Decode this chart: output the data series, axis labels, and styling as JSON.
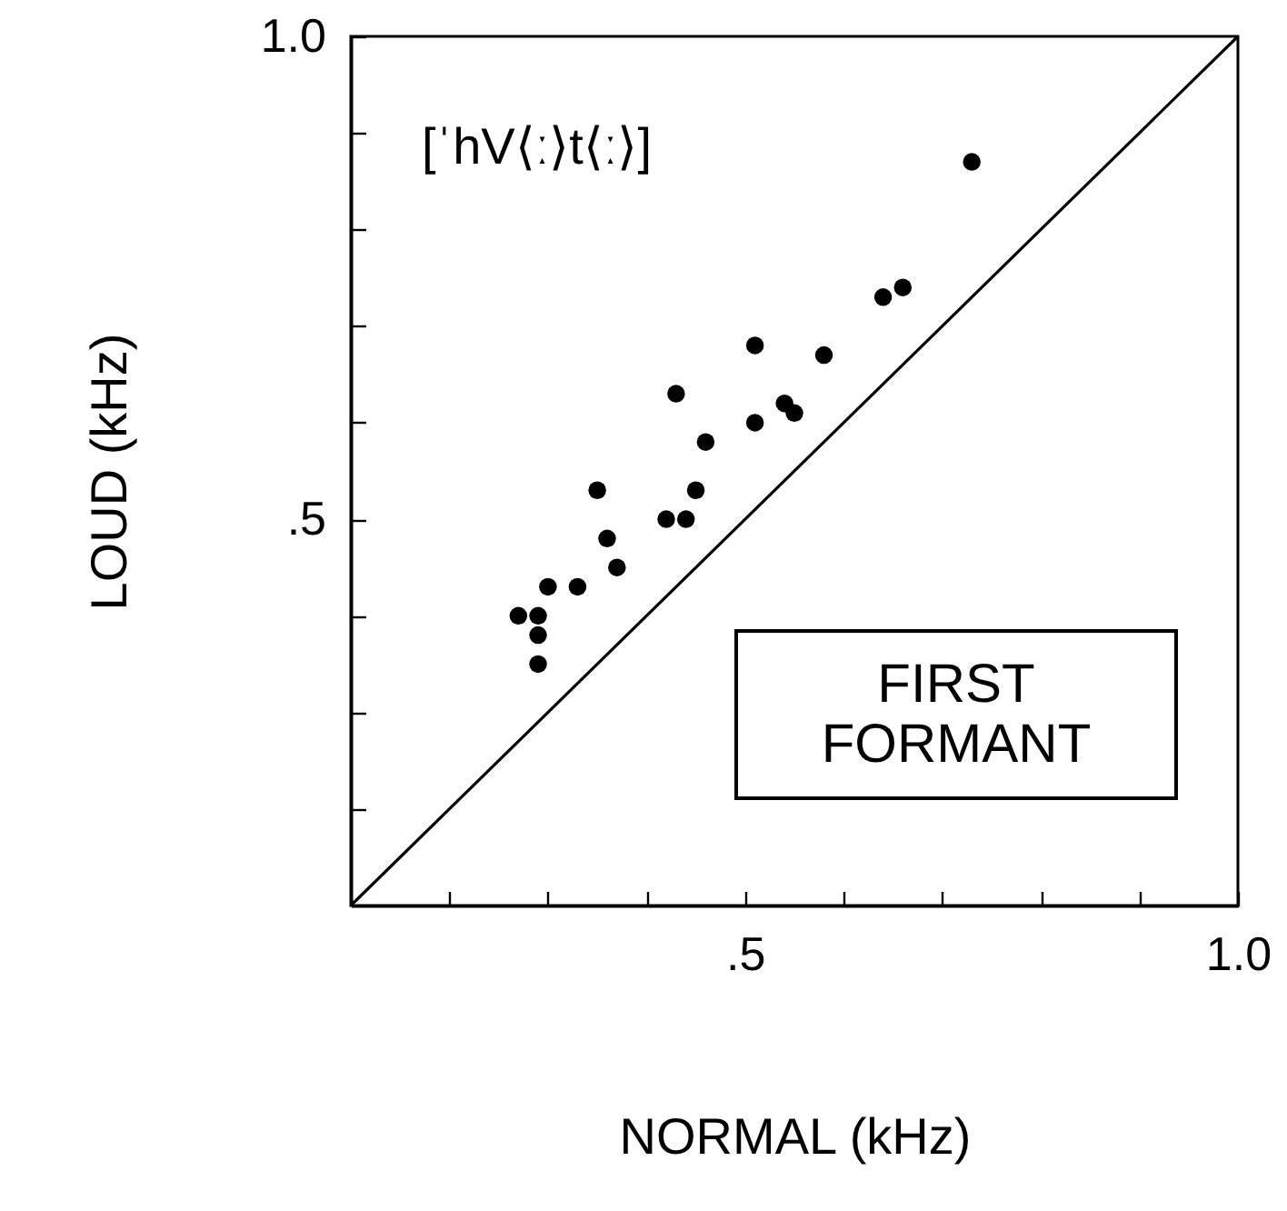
{
  "chart_data": {
    "type": "scatter",
    "xlabel": "NORMAL (kHz)",
    "ylabel": "LOUD (kHz)",
    "annotations": [
      "[ˈhV⟨ː⟩t⟨ː⟩]",
      "FIRST FORMANT"
    ],
    "xlim": [
      0.1,
      1.0
    ],
    "ylim": [
      0.1,
      1.0
    ],
    "xticks": [
      {
        "value": 0.2,
        "label": null
      },
      {
        "value": 0.3,
        "label": null
      },
      {
        "value": 0.4,
        "label": null
      },
      {
        "value": 0.5,
        "label": ".5"
      },
      {
        "value": 0.6,
        "label": null
      },
      {
        "value": 0.7,
        "label": null
      },
      {
        "value": 0.8,
        "label": null
      },
      {
        "value": 0.9,
        "label": null
      },
      {
        "value": 1.0,
        "label": "1.0"
      }
    ],
    "yticks": [
      {
        "value": 0.2,
        "label": null
      },
      {
        "value": 0.3,
        "label": null
      },
      {
        "value": 0.4,
        "label": null
      },
      {
        "value": 0.5,
        "label": ".5"
      },
      {
        "value": 0.6,
        "label": null
      },
      {
        "value": 0.7,
        "label": null
      },
      {
        "value": 0.8,
        "label": null
      },
      {
        "value": 0.9,
        "label": null
      },
      {
        "value": 1.0,
        "label": "1.0"
      }
    ],
    "grid": false,
    "series": [
      {
        "color": "#000000",
        "marker": "circle",
        "x": [
          0.73,
          0.64,
          0.66,
          0.51,
          0.58,
          0.43,
          0.54,
          0.55,
          0.51,
          0.46,
          0.35,
          0.45,
          0.42,
          0.44,
          0.36,
          0.37,
          0.3,
          0.33,
          0.27,
          0.29,
          0.29,
          0.29
        ],
        "values": [
          0.87,
          0.73,
          0.74,
          0.68,
          0.67,
          0.63,
          0.62,
          0.61,
          0.6,
          0.58,
          0.53,
          0.53,
          0.5,
          0.5,
          0.48,
          0.45,
          0.43,
          0.43,
          0.4,
          0.4,
          0.38,
          0.35
        ]
      },
      {
        "type": "line",
        "color": "#000000",
        "line_style": "solid",
        "x": [
          0.1,
          1.0
        ],
        "values": [
          0.1,
          1.0
        ]
      }
    ]
  }
}
